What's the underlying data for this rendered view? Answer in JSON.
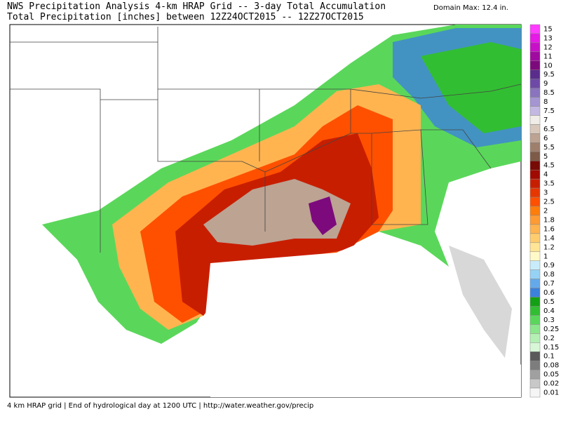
{
  "header": {
    "title": "NWS Precipitation Analysis 4-km HRAP Grid -- 3-day Total Accumulation",
    "subtitle": "Total Precipitation [inches] between 12Z24OCT2015 -- 12Z27OCT2015",
    "domain_max": "Domain Max: 12.4 in."
  },
  "legend": {
    "levels": [
      {
        "label": "15",
        "color": "#ff3cff"
      },
      {
        "label": "13",
        "color": "#e619e6"
      },
      {
        "label": "12",
        "color": "#c810c8"
      },
      {
        "label": "11",
        "color": "#a00aa0"
      },
      {
        "label": "10",
        "color": "#7d0a7d"
      },
      {
        "label": "9.5",
        "color": "#5a2d8c"
      },
      {
        "label": "9",
        "color": "#6e4aa6"
      },
      {
        "label": "8.5",
        "color": "#8a74be"
      },
      {
        "label": "8",
        "color": "#a595d2"
      },
      {
        "label": "7.5",
        "color": "#c3b8e2"
      },
      {
        "label": "7",
        "color": "#f0ece8"
      },
      {
        "label": "6.5",
        "color": "#d8c8bc"
      },
      {
        "label": "6",
        "color": "#bca392"
      },
      {
        "label": "5.5",
        "color": "#9e7f6c"
      },
      {
        "label": "5",
        "color": "#7e5a48"
      },
      {
        "label": "4.5",
        "color": "#780a05"
      },
      {
        "label": "4",
        "color": "#a00a00"
      },
      {
        "label": "3.5",
        "color": "#c81e00"
      },
      {
        "label": "3",
        "color": "#e63700"
      },
      {
        "label": "2.5",
        "color": "#ff5000"
      },
      {
        "label": "2",
        "color": "#ff7d0a"
      },
      {
        "label": "1.8",
        "color": "#ff9b32"
      },
      {
        "label": "1.6",
        "color": "#ffb450"
      },
      {
        "label": "1.4",
        "color": "#ffcd6e"
      },
      {
        "label": "1.2",
        "color": "#ffe696"
      },
      {
        "label": "1",
        "color": "#fffac8"
      },
      {
        "label": "0.9",
        "color": "#c8ecfa"
      },
      {
        "label": "0.8",
        "color": "#96d2f5"
      },
      {
        "label": "0.7",
        "color": "#64aaeb"
      },
      {
        "label": "0.6",
        "color": "#3c82dc"
      },
      {
        "label": "0.5",
        "color": "#14a014"
      },
      {
        "label": "0.4",
        "color": "#32be32"
      },
      {
        "label": "0.3",
        "color": "#5ad75a"
      },
      {
        "label": "0.25",
        "color": "#8ce68c"
      },
      {
        "label": "0.2",
        "color": "#b4f0b4"
      },
      {
        "label": "0.15",
        "color": "#d7f7d7"
      },
      {
        "label": "0.1",
        "color": "#5a5a5a"
      },
      {
        "label": "0.08",
        "color": "#7d7d7d"
      },
      {
        "label": "0.05",
        "color": "#a0a0a0"
      },
      {
        "label": "0.02",
        "color": "#c8c8c8"
      },
      {
        "label": "0.01",
        "color": "#f5f5f5"
      }
    ]
  },
  "footer": "4 km HRAP grid | End of hydrological day at 1200 UTC | http://water.weather.gov/precip"
}
